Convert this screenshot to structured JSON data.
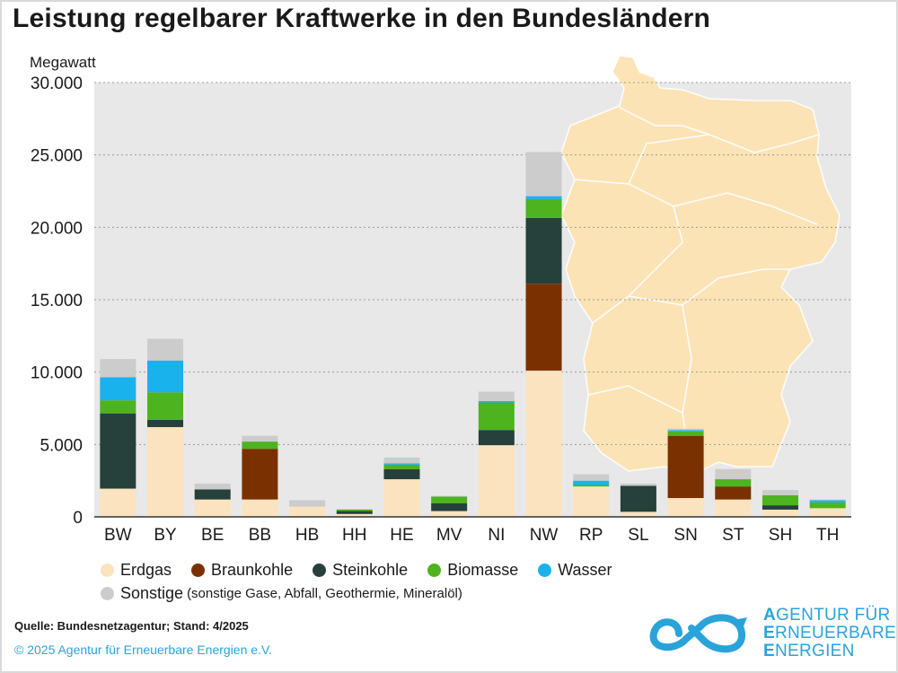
{
  "title": "Leistung regelbarer Kraftwerke in den Bundesländern",
  "unit_label": "Megawatt",
  "source": "Quelle: Bundesnetzagentur; Stand: 4/2025",
  "copyright": "© 2025 Agentur für Erneuerbare Energien e.V.",
  "logo": {
    "lines": [
      {
        "initial": "A",
        "rest": "GENTUR FÜR"
      },
      {
        "initial": "E",
        "rest": "RNEUERBARE"
      },
      {
        "initial": "E",
        "rest": "NERGIEN"
      }
    ]
  },
  "legend_note": "(sonstige Gase, Abfall, Geothermie, Mineralöl)",
  "chart_data": {
    "type": "bar",
    "stacked": true,
    "title": "Leistung regelbarer Kraftwerke in den Bundesländern",
    "ylabel": "Megawatt",
    "ylim": [
      0,
      30000
    ],
    "yticks": [
      "0",
      "5.000",
      "10.000",
      "15.000",
      "20.000",
      "25.000",
      "30.000"
    ],
    "ytick_values": [
      0,
      5000,
      10000,
      15000,
      20000,
      25000,
      30000
    ],
    "grid": true,
    "legend_position": "bottom",
    "categories": [
      "BW",
      "BY",
      "BE",
      "BB",
      "HB",
      "HH",
      "HE",
      "MV",
      "NI",
      "NW",
      "RP",
      "SL",
      "SN",
      "ST",
      "SH",
      "TH"
    ],
    "series": [
      {
        "name": "Erdgas",
        "color": "#fbe3bf",
        "values": [
          1950,
          6200,
          1200,
          1200,
          700,
          200,
          2600,
          400,
          4950,
          10100,
          2100,
          350,
          1300,
          1200,
          500,
          600
        ]
      },
      {
        "name": "Braunkohle",
        "color": "#7b3000",
        "values": [
          0,
          0,
          0,
          3500,
          0,
          0,
          0,
          0,
          0,
          6000,
          0,
          0,
          4300,
          900,
          0,
          0
        ]
      },
      {
        "name": "Steinkohle",
        "color": "#26403b",
        "values": [
          5200,
          500,
          700,
          0,
          0,
          200,
          700,
          550,
          1050,
          4550,
          0,
          1800,
          0,
          0,
          300,
          0
        ]
      },
      {
        "name": "Biomasse",
        "color": "#4db31e",
        "values": [
          900,
          1900,
          0,
          500,
          0,
          100,
          300,
          450,
          1900,
          1300,
          100,
          0,
          300,
          500,
          700,
          400
        ]
      },
      {
        "name": "Wasser",
        "color": "#1ab2ed",
        "values": [
          1600,
          2200,
          0,
          0,
          0,
          0,
          100,
          0,
          100,
          200,
          300,
          0,
          100,
          0,
          0,
          150
        ]
      },
      {
        "name": "Sonstige",
        "color": "#cccccc",
        "values": [
          1250,
          1500,
          400,
          400,
          450,
          50,
          400,
          50,
          650,
          3050,
          450,
          150,
          100,
          700,
          350,
          50
        ]
      }
    ]
  }
}
